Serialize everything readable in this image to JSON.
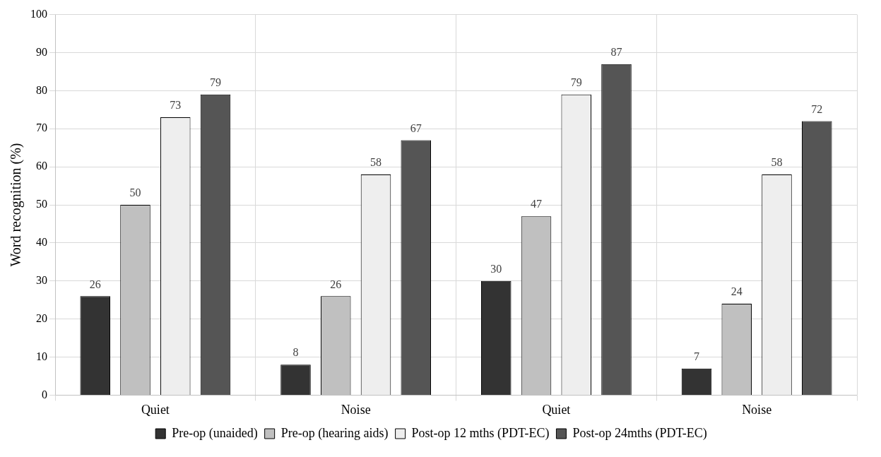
{
  "chart_data": {
    "type": "bar",
    "ylabel": "Word recognition (%)",
    "categories": [
      "Quiet",
      "Noise",
      "Quiet",
      "Noise"
    ],
    "series": [
      {
        "name": "Pre-op (unaided)",
        "color": "#333333",
        "values": [
          26,
          8,
          30,
          7
        ]
      },
      {
        "name": "Pre-op (hearing aids)",
        "color": "#c0c0c0",
        "values": [
          50,
          26,
          47,
          24
        ]
      },
      {
        "name": "Post-op 12 mths (PDT-EC)",
        "color": "#eeeeee",
        "values": [
          73,
          58,
          79,
          58
        ]
      },
      {
        "name": "Post-op 24mths (PDT-EC)",
        "color": "#555555",
        "values": [
          79,
          67,
          87,
          72
        ]
      }
    ],
    "ylim": [
      0,
      100
    ],
    "yticks": [
      0,
      10,
      20,
      30,
      40,
      50,
      60,
      70,
      80,
      90,
      100
    ],
    "grid": true,
    "legend": "bottom",
    "data_labels": true
  }
}
